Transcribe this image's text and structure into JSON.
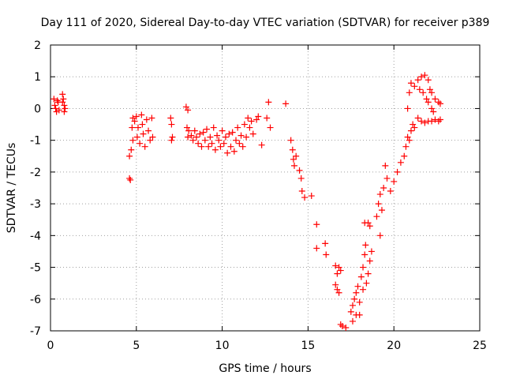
{
  "chart_data": {
    "type": "scatter",
    "title": "Day 111 of 2020, Sidereal Day-to-day VTEC variation (SDTVAR) for receiver p389",
    "xlabel": "GPS time / hours",
    "ylabel": "SDTVAR / TECUs",
    "xlim": [
      0,
      25
    ],
    "ylim": [
      -7,
      2
    ],
    "x_ticks": [
      0,
      5,
      10,
      15,
      20,
      25
    ],
    "y_ticks": [
      -7,
      -6,
      -5,
      -4,
      -3,
      -2,
      -1,
      0,
      1,
      2
    ],
    "x_tick_labels": [
      "0",
      "5",
      "10",
      "15",
      "20",
      "25"
    ],
    "y_tick_labels": [
      "-7",
      "-6",
      "-5",
      "-4",
      "-3",
      "-2",
      "-1",
      "0",
      "1",
      "2"
    ],
    "grid": true,
    "marker": "+",
    "color": "#ff0000",
    "series": [
      {
        "name": "p389",
        "points": [
          [
            0.2,
            0.3
          ],
          [
            0.25,
            0.1
          ],
          [
            0.3,
            0.0
          ],
          [
            0.35,
            -0.1
          ],
          [
            0.4,
            0.25
          ],
          [
            0.45,
            0.2
          ],
          [
            0.5,
            -0.05
          ],
          [
            0.7,
            0.45
          ],
          [
            0.75,
            0.3
          ],
          [
            0.8,
            0.1
          ],
          [
            0.85,
            0.0
          ],
          [
            0.8,
            -0.1
          ],
          [
            0.7,
            0.2
          ],
          [
            4.6,
            -2.2
          ],
          [
            4.65,
            -2.25
          ],
          [
            4.6,
            -1.5
          ],
          [
            4.7,
            -1.3
          ],
          [
            4.8,
            -1.0
          ],
          [
            4.75,
            -0.6
          ],
          [
            4.8,
            -0.3
          ],
          [
            4.9,
            -0.4
          ],
          [
            5.0,
            -0.25
          ],
          [
            5.1,
            -0.6
          ],
          [
            5.05,
            -0.9
          ],
          [
            5.2,
            -1.1
          ],
          [
            5.3,
            -0.2
          ],
          [
            5.35,
            -0.5
          ],
          [
            5.4,
            -0.8
          ],
          [
            5.5,
            -1.2
          ],
          [
            5.6,
            -0.35
          ],
          [
            5.7,
            -0.7
          ],
          [
            5.8,
            -1.0
          ],
          [
            5.9,
            -0.3
          ],
          [
            5.95,
            -0.9
          ],
          [
            7.0,
            -0.3
          ],
          [
            7.05,
            -0.5
          ],
          [
            7.1,
            -0.9
          ],
          [
            7.05,
            -1.0
          ],
          [
            7.9,
            0.05
          ],
          [
            8.0,
            -0.05
          ],
          [
            7.95,
            -0.6
          ],
          [
            8.0,
            -0.9
          ],
          [
            8.05,
            -0.7
          ],
          [
            8.2,
            -0.85
          ],
          [
            8.3,
            -1.0
          ],
          [
            8.4,
            -0.7
          ],
          [
            8.5,
            -0.9
          ],
          [
            8.6,
            -1.1
          ],
          [
            8.7,
            -0.8
          ],
          [
            8.8,
            -1.2
          ],
          [
            8.9,
            -0.75
          ],
          [
            9.0,
            -1.0
          ],
          [
            9.1,
            -0.65
          ],
          [
            9.2,
            -1.2
          ],
          [
            9.3,
            -0.9
          ],
          [
            9.4,
            -1.1
          ],
          [
            9.5,
            -0.6
          ],
          [
            9.6,
            -1.3
          ],
          [
            9.7,
            -0.85
          ],
          [
            9.8,
            -1.0
          ],
          [
            9.9,
            -1.2
          ],
          [
            10.0,
            -0.7
          ],
          [
            10.1,
            -1.1
          ],
          [
            10.2,
            -0.9
          ],
          [
            10.3,
            -1.4
          ],
          [
            10.4,
            -0.8
          ],
          [
            10.5,
            -1.2
          ],
          [
            10.6,
            -0.75
          ],
          [
            10.7,
            -1.35
          ],
          [
            10.8,
            -1.0
          ],
          [
            10.9,
            -0.6
          ],
          [
            11.0,
            -1.1
          ],
          [
            11.1,
            -0.85
          ],
          [
            11.2,
            -1.2
          ],
          [
            11.3,
            -0.5
          ],
          [
            11.4,
            -0.9
          ],
          [
            11.5,
            -0.3
          ],
          [
            11.6,
            -0.6
          ],
          [
            11.7,
            -0.4
          ],
          [
            11.8,
            -0.8
          ],
          [
            12.0,
            -0.35
          ],
          [
            12.1,
            -0.25
          ],
          [
            12.3,
            -1.15
          ],
          [
            12.6,
            -0.3
          ],
          [
            12.7,
            0.2
          ],
          [
            12.8,
            -0.6
          ],
          [
            13.7,
            0.15
          ],
          [
            14.0,
            -1.0
          ],
          [
            14.1,
            -1.3
          ],
          [
            14.15,
            -1.6
          ],
          [
            14.2,
            -1.8
          ],
          [
            14.3,
            -1.5
          ],
          [
            14.5,
            -1.95
          ],
          [
            14.6,
            -2.2
          ],
          [
            14.65,
            -2.6
          ],
          [
            14.8,
            -2.8
          ],
          [
            15.2,
            -2.75
          ],
          [
            15.5,
            -3.65
          ],
          [
            15.5,
            -4.4
          ],
          [
            16.0,
            -4.25
          ],
          [
            16.05,
            -4.6
          ],
          [
            16.6,
            -4.95
          ],
          [
            16.7,
            -5.2
          ],
          [
            16.8,
            -5.0
          ],
          [
            16.9,
            -5.1
          ],
          [
            16.6,
            -5.55
          ],
          [
            16.7,
            -5.7
          ],
          [
            16.8,
            -5.8
          ],
          [
            16.9,
            -6.8
          ],
          [
            17.0,
            -6.85
          ],
          [
            17.2,
            -6.9
          ],
          [
            17.5,
            -6.4
          ],
          [
            17.6,
            -6.2
          ],
          [
            17.7,
            -6.0
          ],
          [
            17.8,
            -5.8
          ],
          [
            17.9,
            -5.6
          ],
          [
            18.0,
            -6.5
          ],
          [
            18.1,
            -5.3
          ],
          [
            18.2,
            -5.0
          ],
          [
            18.3,
            -4.6
          ],
          [
            18.35,
            -4.3
          ],
          [
            18.4,
            -5.5
          ],
          [
            18.5,
            -5.2
          ],
          [
            18.6,
            -4.8
          ],
          [
            18.7,
            -4.5
          ],
          [
            17.6,
            -6.7
          ],
          [
            17.8,
            -6.5
          ],
          [
            18.0,
            -6.1
          ],
          [
            18.2,
            -5.7
          ],
          [
            18.3,
            -3.6
          ],
          [
            18.5,
            -3.6
          ],
          [
            18.6,
            -3.7
          ],
          [
            19.0,
            -3.4
          ],
          [
            19.1,
            -3.0
          ],
          [
            19.2,
            -2.7
          ],
          [
            19.3,
            -3.2
          ],
          [
            19.2,
            -4.0
          ],
          [
            19.4,
            -2.5
          ],
          [
            19.5,
            -1.8
          ],
          [
            19.6,
            -2.2
          ],
          [
            19.8,
            -2.6
          ],
          [
            20.0,
            -2.3
          ],
          [
            20.2,
            -2.0
          ],
          [
            20.4,
            -1.7
          ],
          [
            20.6,
            -1.5
          ],
          [
            20.7,
            -1.2
          ],
          [
            20.8,
            -0.9
          ],
          [
            20.9,
            -1.0
          ],
          [
            21.0,
            -0.7
          ],
          [
            21.1,
            -0.5
          ],
          [
            21.2,
            -0.6
          ],
          [
            21.4,
            -0.3
          ],
          [
            20.8,
            0.0
          ],
          [
            20.9,
            0.5
          ],
          [
            21.0,
            0.8
          ],
          [
            21.2,
            0.7
          ],
          [
            21.4,
            0.9
          ],
          [
            21.6,
            1.0
          ],
          [
            21.8,
            1.05
          ],
          [
            22.0,
            0.9
          ],
          [
            22.1,
            0.6
          ],
          [
            22.2,
            0.5
          ],
          [
            22.4,
            0.3
          ],
          [
            22.6,
            0.2
          ],
          [
            22.7,
            0.15
          ],
          [
            21.6,
            -0.4
          ],
          [
            21.8,
            -0.45
          ],
          [
            22.0,
            -0.4
          ],
          [
            22.2,
            -0.4
          ],
          [
            22.4,
            -0.35
          ],
          [
            22.6,
            -0.4
          ],
          [
            22.7,
            -0.35
          ],
          [
            21.5,
            0.6
          ],
          [
            21.7,
            0.5
          ],
          [
            21.9,
            0.3
          ],
          [
            22.0,
            0.2
          ],
          [
            22.2,
            0.0
          ],
          [
            22.3,
            -0.1
          ]
        ]
      }
    ]
  }
}
